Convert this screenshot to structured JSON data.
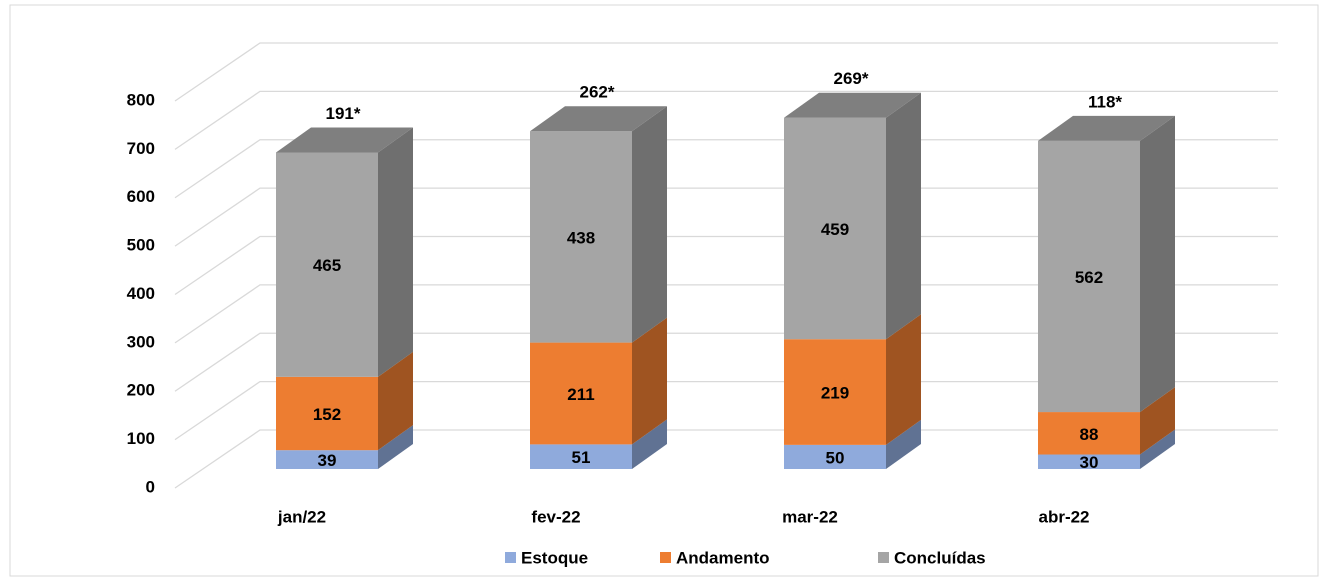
{
  "chart_data": {
    "type": "bar3d_stacked",
    "categories": [
      "jan/22",
      "fev-22",
      "mar-22",
      "abr-22"
    ],
    "series": [
      {
        "name": "Estoque",
        "color": "#8faadc",
        "values": [
          39,
          51,
          50,
          30
        ]
      },
      {
        "name": "Andamento",
        "color": "#ed7d31",
        "values": [
          152,
          211,
          219,
          88
        ]
      },
      {
        "name": "Concluídas",
        "color": "#a5a5a5",
        "values": [
          465,
          438,
          459,
          562
        ]
      }
    ],
    "annotations": [
      "191*",
      "262*",
      "269*",
      "118*"
    ],
    "ylim": [
      0,
      800
    ],
    "yticks": [
      0,
      100,
      200,
      300,
      400,
      500,
      600,
      700,
      800
    ],
    "grid": true,
    "legend": "bottom"
  }
}
